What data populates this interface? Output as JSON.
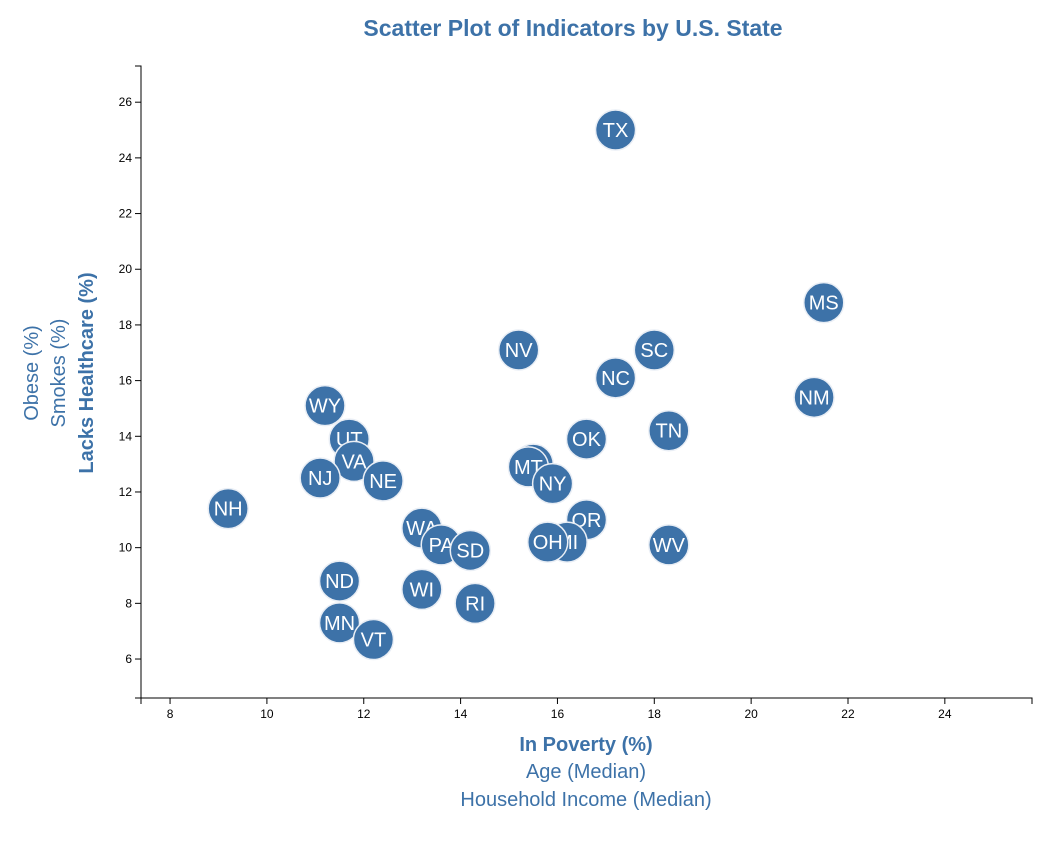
{
  "chart_data": {
    "type": "scatter",
    "title": "Scatter Plot of Indicators by U.S. State",
    "x_axis": {
      "labels": [
        {
          "text": "In Poverty (%)",
          "active": true
        },
        {
          "text": "Age (Median)",
          "active": false
        },
        {
          "text": "Household Income (Median)",
          "active": false
        }
      ],
      "ticks": [
        8,
        10,
        12,
        14,
        16,
        18,
        20,
        22,
        24
      ],
      "range": [
        7.4,
        25.8
      ]
    },
    "y_axis": {
      "labels": [
        {
          "text": "Lacks Healthcare (%)",
          "active": true
        },
        {
          "text": "Smokes (%)",
          "active": false
        },
        {
          "text": "Obese (%)",
          "active": false
        }
      ],
      "ticks": [
        6,
        8,
        10,
        12,
        14,
        16,
        18,
        20,
        22,
        24,
        26
      ],
      "range": [
        4.6,
        27.3
      ]
    },
    "grid": false,
    "colors": {
      "marker": "#3d72a8",
      "marker_stroke": "#e9eef5",
      "label": "#ffffff",
      "accent": "#3d72a8"
    },
    "points": [
      {
        "abbr": "TX",
        "x": 17.2,
        "y": 25.0
      },
      {
        "abbr": "MS",
        "x": 21.5,
        "y": 18.8
      },
      {
        "abbr": "NV",
        "x": 15.2,
        "y": 17.1
      },
      {
        "abbr": "SC",
        "x": 18.0,
        "y": 17.1
      },
      {
        "abbr": "NC",
        "x": 17.2,
        "y": 16.1
      },
      {
        "abbr": "NM",
        "x": 21.3,
        "y": 15.4
      },
      {
        "abbr": "WY",
        "x": 11.2,
        "y": 15.1
      },
      {
        "abbr": "TN",
        "x": 18.3,
        "y": 14.2
      },
      {
        "abbr": "UT",
        "x": 11.7,
        "y": 13.9
      },
      {
        "abbr": "OK",
        "x": 16.6,
        "y": 13.9
      },
      {
        "abbr": "VA",
        "x": 11.8,
        "y": 13.1
      },
      {
        "abbr": "ID",
        "x": 15.5,
        "y": 13.0
      },
      {
        "abbr": "MT",
        "x": 15.4,
        "y": 12.9
      },
      {
        "abbr": "NJ",
        "x": 11.1,
        "y": 12.5
      },
      {
        "abbr": "NE",
        "x": 12.4,
        "y": 12.4
      },
      {
        "abbr": "NY",
        "x": 15.9,
        "y": 12.3
      },
      {
        "abbr": "NH",
        "x": 9.2,
        "y": 11.4
      },
      {
        "abbr": "OR",
        "x": 16.6,
        "y": 11.0
      },
      {
        "abbr": "WA",
        "x": 13.2,
        "y": 10.7
      },
      {
        "abbr": "PA",
        "x": 13.6,
        "y": 10.1
      },
      {
        "abbr": "MI",
        "x": 16.2,
        "y": 10.2
      },
      {
        "abbr": "OH",
        "x": 15.8,
        "y": 10.2
      },
      {
        "abbr": "WV",
        "x": 18.3,
        "y": 10.1
      },
      {
        "abbr": "SD",
        "x": 14.2,
        "y": 9.9
      },
      {
        "abbr": "ND",
        "x": 11.5,
        "y": 8.8
      },
      {
        "abbr": "WI",
        "x": 13.2,
        "y": 8.5
      },
      {
        "abbr": "RI",
        "x": 14.3,
        "y": 8.0
      },
      {
        "abbr": "MN",
        "x": 11.5,
        "y": 7.3
      },
      {
        "abbr": "VT",
        "x": 12.2,
        "y": 6.7
      }
    ]
  }
}
